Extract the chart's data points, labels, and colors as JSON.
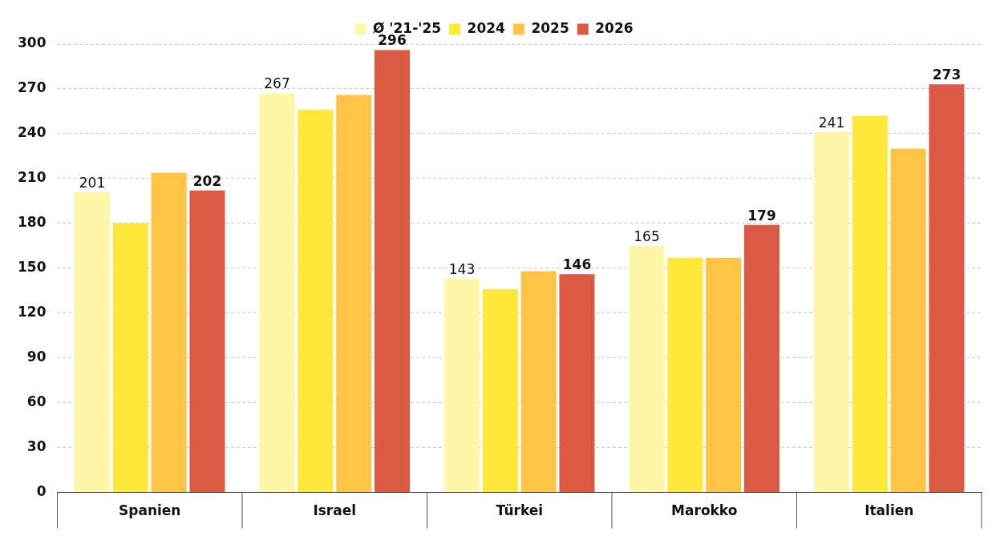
{
  "chart_data": {
    "type": "bar",
    "categories": [
      "Spanien",
      "Israel",
      "Türkei",
      "Marokko",
      "Italien"
    ],
    "series": [
      {
        "name": "Ø '21-'25",
        "color": "#fff7a8",
        "values": [
          201,
          267,
          143,
          165,
          241
        ],
        "value_labels": [
          "201",
          "267",
          "143",
          "165",
          "241"
        ]
      },
      {
        "name": "2024",
        "color": "#ffe83a",
        "values": [
          180,
          256,
          136,
          157,
          252
        ]
      },
      {
        "name": "2025",
        "color": "#ffc445",
        "values": [
          214,
          266,
          148,
          157,
          230
        ]
      },
      {
        "name": "2026",
        "color": "#dc5943",
        "values": [
          202,
          296,
          146,
          179,
          273
        ],
        "value_labels": [
          "202",
          "296",
          "146",
          "179",
          "273"
        ]
      }
    ],
    "ylim": [
      0,
      300
    ],
    "yticks": [
      0,
      30,
      60,
      90,
      120,
      150,
      180,
      210,
      240,
      270,
      300
    ],
    "grid": "y",
    "legend": "top"
  }
}
